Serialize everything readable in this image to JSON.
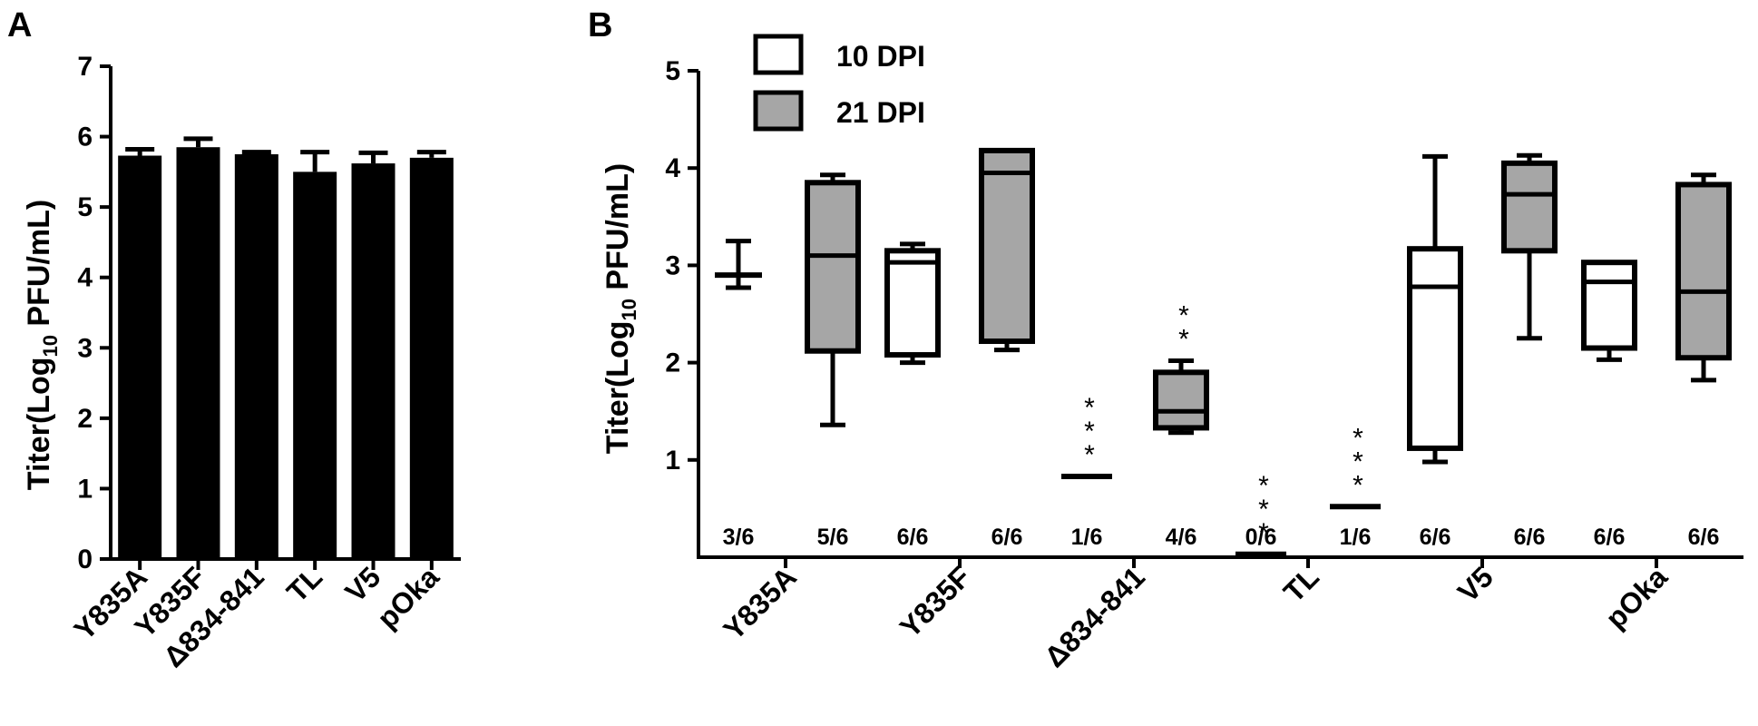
{
  "chart_data": [
    {
      "panel": "A",
      "type": "bar",
      "categories": [
        "Y835A",
        "Y835F",
        "Δ834-841",
        "TL",
        "V5",
        "pOka"
      ],
      "values": [
        5.73,
        5.85,
        5.75,
        5.5,
        5.62,
        5.7
      ],
      "error_upper": [
        5.82,
        5.97,
        5.78,
        5.78,
        5.77,
        5.78
      ],
      "ylabel": {
        "main": "Titer(Log",
        "sub": "10",
        "rest": " PFU/mL)"
      },
      "ylim": [
        0,
        7
      ],
      "yticks": [
        0,
        1,
        2,
        3,
        4,
        5,
        6,
        7
      ],
      "bar_color": "#000000"
    },
    {
      "panel": "B",
      "type": "box",
      "categories": [
        "Y835A",
        "Y835F",
        "Δ834-841",
        "TL",
        "V5",
        "pOka"
      ],
      "ylabel": {
        "main": "Titer(Log",
        "sub": "10",
        "rest": " PFU/mL)"
      },
      "ylim": [
        0,
        5
      ],
      "yticks": [
        1,
        2,
        3,
        4,
        5
      ],
      "legend": [
        {
          "label": "10 DPI",
          "color": "#ffffff"
        },
        {
          "label": "21 DPI",
          "color": "#a6a6a6"
        }
      ],
      "boxes": [
        {
          "cat": 0,
          "series": "10 DPI",
          "min": 2.77,
          "q1": 2.88,
          "median": 2.9,
          "q3": 2.92,
          "max": 3.25,
          "count": "3/6",
          "box": false
        },
        {
          "cat": 0,
          "series": "21 DPI",
          "min": 1.36,
          "q1": 2.12,
          "median": 3.1,
          "q3": 3.85,
          "max": 3.93,
          "count": "5/6",
          "box": true
        },
        {
          "cat": 1,
          "series": "10 DPI",
          "min": 2.0,
          "q1": 2.08,
          "median": 3.03,
          "q3": 3.15,
          "max": 3.22,
          "count": "6/6",
          "box": true
        },
        {
          "cat": 1,
          "series": "21 DPI",
          "min": 2.13,
          "q1": 2.22,
          "median": 3.95,
          "q3": 4.18,
          "max": 4.18,
          "count": "6/6",
          "box": true
        },
        {
          "cat": 2,
          "series": "10 DPI",
          "value": 0.83,
          "count": "1/6",
          "box": false,
          "single": true,
          "stars": "***"
        },
        {
          "cat": 2,
          "series": "21 DPI",
          "min": 1.28,
          "q1": 1.33,
          "median": 1.5,
          "q3": 1.9,
          "max": 2.02,
          "count": "4/6",
          "box": true,
          "stars": "**"
        },
        {
          "cat": 3,
          "series": "10 DPI",
          "value": 0.03,
          "count": "0/6",
          "box": false,
          "single": true,
          "stars": "***"
        },
        {
          "cat": 3,
          "series": "21 DPI",
          "value": 0.52,
          "count": "1/6",
          "box": false,
          "single": true,
          "stars": "***"
        },
        {
          "cat": 4,
          "series": "10 DPI",
          "min": 0.98,
          "q1": 1.12,
          "median": 2.78,
          "q3": 3.17,
          "max": 4.12,
          "count": "6/6",
          "box": true
        },
        {
          "cat": 4,
          "series": "21 DPI",
          "min": 2.25,
          "q1": 3.15,
          "median": 3.73,
          "q3": 4.05,
          "max": 4.13,
          "count": "6/6",
          "box": true
        },
        {
          "cat": 5,
          "series": "10 DPI",
          "min": 2.03,
          "q1": 2.15,
          "median": 2.83,
          "q3": 3.03,
          "max": 3.03,
          "count": "6/6",
          "box": true
        },
        {
          "cat": 5,
          "series": "21 DPI",
          "min": 1.82,
          "q1": 2.05,
          "median": 2.73,
          "q3": 3.83,
          "max": 3.93,
          "count": "6/6",
          "box": true
        }
      ]
    }
  ]
}
